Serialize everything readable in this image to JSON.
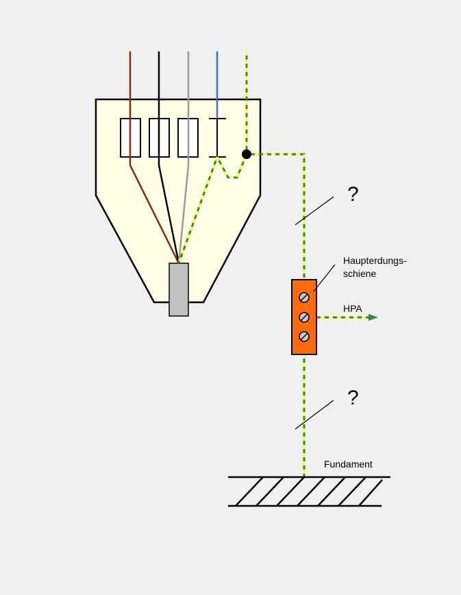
{
  "labels": {
    "question_upper": "?",
    "question_lower": "?",
    "busbar_line1": "Haupterdungs-",
    "busbar_line2": "schiene",
    "hpa": "HPA",
    "foundation": "Fundament"
  },
  "colors": {
    "background": "#f0f0f0",
    "housing_fill": "#ffffe6",
    "outline": "#000000",
    "wire_brown": "#8b2a0a",
    "wire_black": "#000000",
    "wire_grey": "#9a9a9a",
    "wire_blue": "#3a6fe0",
    "pe_green": "#2e8b3a",
    "pe_yellow": "#ffff33",
    "busbar_orange": "#ff6a0a",
    "cable_grey": "#c0c0c0"
  },
  "icons": [
    "terminal-screw-icon",
    "arrow-right-icon"
  ]
}
